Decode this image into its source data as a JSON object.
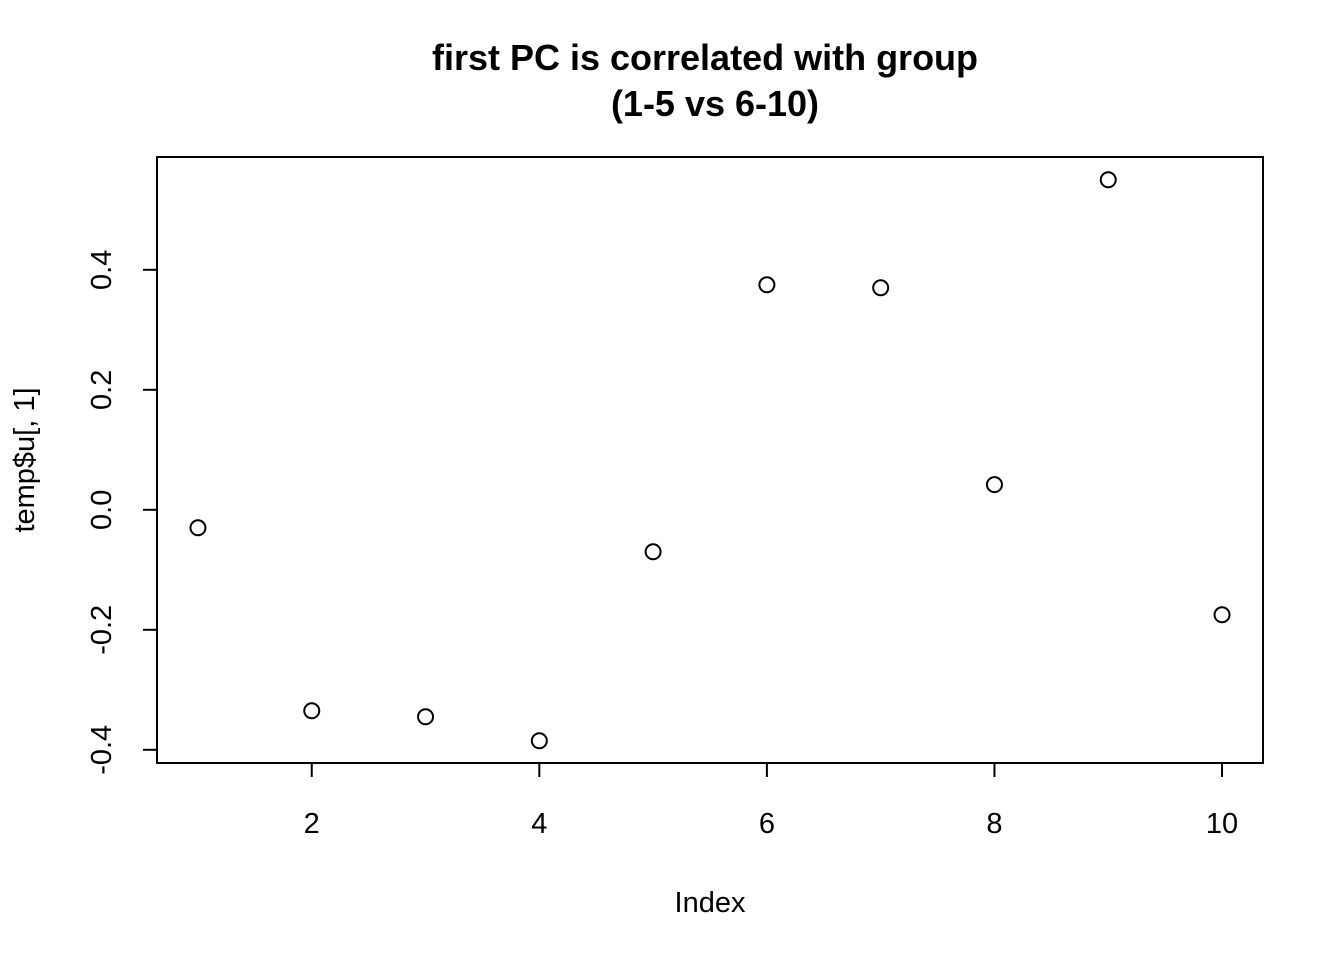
{
  "chart_data": {
    "type": "scatter",
    "title": "first PC is correlated with group",
    "subtitle": "(1-5 vs 6-10)",
    "xlabel": "Index",
    "ylabel": "temp$u[, 1]",
    "x": [
      1,
      2,
      3,
      4,
      5,
      6,
      7,
      8,
      9,
      10
    ],
    "y": [
      -0.03,
      -0.335,
      -0.345,
      -0.385,
      -0.07,
      0.375,
      0.37,
      0.042,
      0.55,
      -0.175
    ],
    "xlim": [
      0.64,
      10.36
    ],
    "ylim": [
      -0.422,
      0.588
    ],
    "xticks": [
      2,
      4,
      6,
      8,
      10
    ],
    "xtick_labels": [
      "2",
      "4",
      "6",
      "8",
      "10"
    ],
    "yticks": [
      -0.4,
      -0.2,
      0.0,
      0.2,
      0.4
    ],
    "ytick_labels": [
      "-0.4",
      "-0.2",
      "0.0",
      "0.2",
      "0.4"
    ],
    "grid": false,
    "marker": "open-circle",
    "color": "#000000"
  }
}
